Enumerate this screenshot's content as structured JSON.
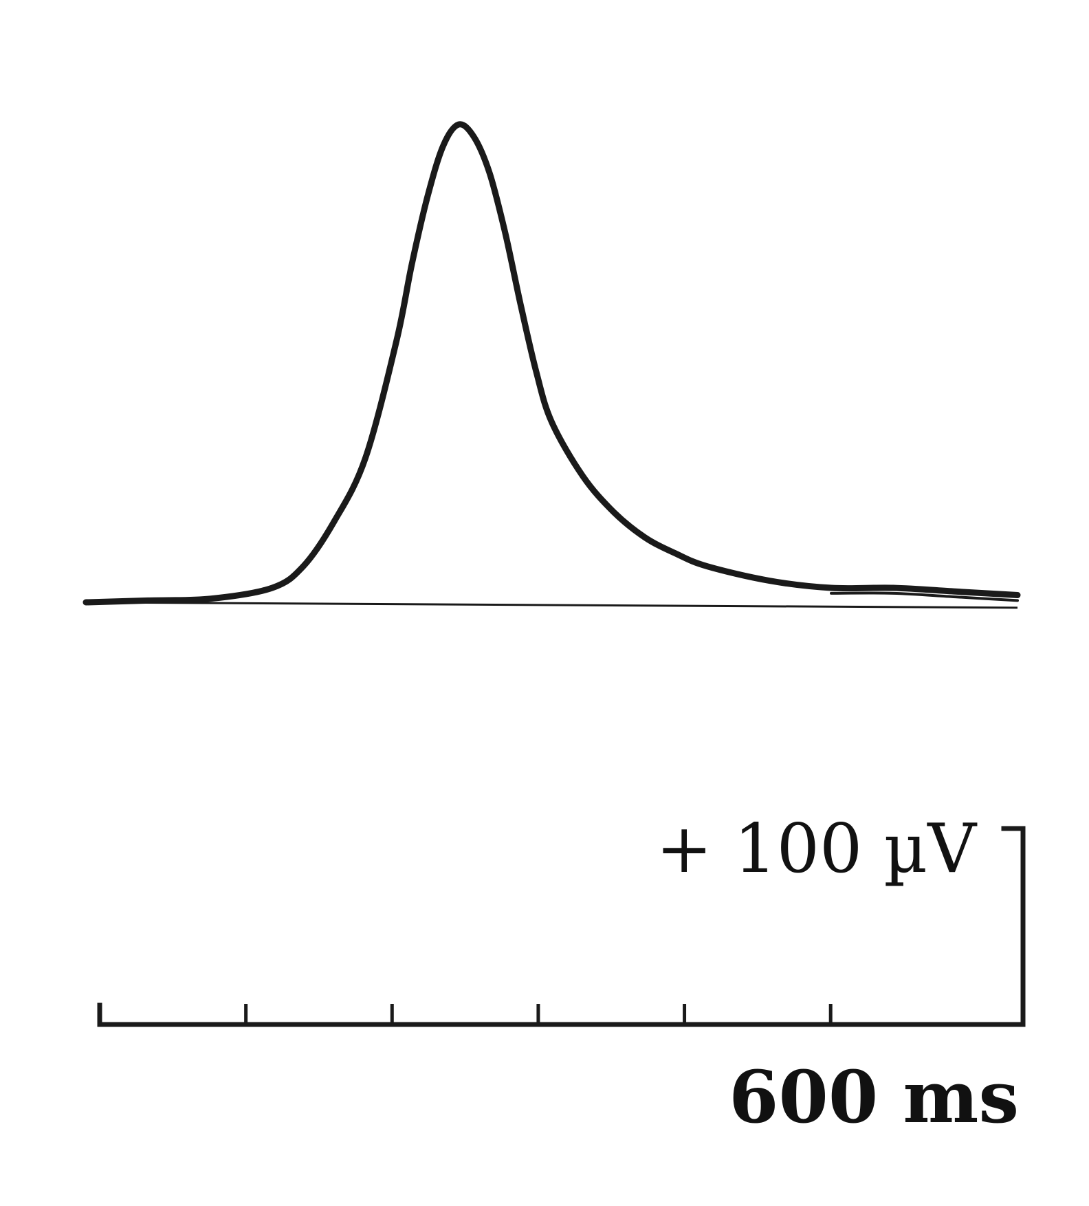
{
  "chart_data": {
    "type": "line",
    "title": "",
    "xlabel": "",
    "ylabel": "",
    "x_unit": "ms",
    "y_unit": "µV",
    "xlim": [
      0,
      3000
    ],
    "ylim": [
      0,
      270
    ],
    "grid": false,
    "series": [
      {
        "x": [
          0,
          200,
          400,
          600,
          700,
          800,
          900,
          1000,
          1050,
          1100,
          1150,
          1200,
          1250,
          1300,
          1350,
          1400,
          1450,
          1500,
          1600,
          1700,
          1800,
          1900,
          2000,
          2200,
          2400,
          2600,
          2800,
          3000
        ],
        "y": [
          0,
          1,
          2,
          8,
          20,
          45,
          80,
          145,
          188,
          225,
          253,
          265,
          258,
          238,
          205,
          165,
          128,
          100,
          70,
          50,
          36,
          27,
          20,
          12,
          8,
          8,
          6,
          4
        ]
      },
      {
        "x": [
          0,
          3000
        ],
        "y": [
          0,
          -3
        ]
      }
    ],
    "calibration": {
      "voltage_label": "+ 100 µV",
      "voltage_value": 100,
      "time_label": "600 ms",
      "time_value": 600,
      "time_ticks": [
        0,
        100,
        200,
        300,
        400,
        500,
        600
      ]
    }
  }
}
